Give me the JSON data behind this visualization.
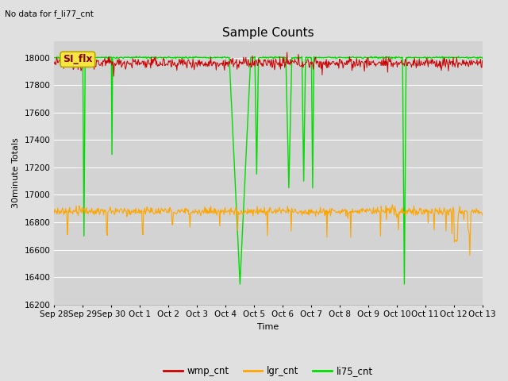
{
  "title": "Sample Counts",
  "top_left_text": "No data for f_li77_cnt",
  "annotation_text": "SI_flx",
  "xlabel": "Time",
  "ylabel": "30minute Totals",
  "ylim": [
    16200,
    18120
  ],
  "yticks": [
    16200,
    16400,
    16600,
    16800,
    17000,
    17200,
    17400,
    17600,
    17800,
    18000
  ],
  "xtick_labels": [
    "Sep 28",
    "Sep 29",
    "Sep 30",
    "Oct 1",
    "Oct 2",
    "Oct 3",
    "Oct 4",
    "Oct 5",
    "Oct 6",
    "Oct 7",
    "Oct 8",
    "Oct 9",
    "Oct 10",
    "Oct 11",
    "Oct 12",
    "Oct 13"
  ],
  "n_days": 15,
  "wmp_base": 17960,
  "wmp_noise_scale": 20,
  "lgr_base": 16880,
  "lgr_noise_scale": 15,
  "li75_base": 18000,
  "background_color": "#e0e0e0",
  "plot_bg_color": "#d3d3d3",
  "grid_color": "#ffffff",
  "wmp_color": "#cc0000",
  "lgr_color": "#ffa500",
  "li75_color": "#00dd00",
  "legend_labels": [
    "wmp_cnt",
    "lgr_cnt",
    "li75_cnt"
  ],
  "title_fontsize": 11,
  "label_fontsize": 8,
  "tick_fontsize": 7.5,
  "legend_fontsize": 8.5
}
